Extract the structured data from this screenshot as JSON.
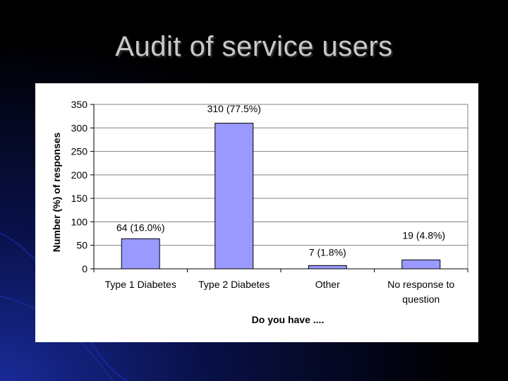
{
  "slide": {
    "title": "Audit of service users"
  },
  "colors": {
    "bar_fill": "#9999FF",
    "bar_stroke": "#000000",
    "plot_bg": "#FFFFFF",
    "gridline": "#808080",
    "title_text": "#C9C9C9"
  },
  "chart_data": {
    "type": "bar",
    "categories": [
      [
        "Type 1 Diabetes"
      ],
      [
        "Type 2 Diabetes"
      ],
      [
        "Other"
      ],
      [
        "No response to",
        "question"
      ]
    ],
    "values": [
      64,
      310,
      7,
      19
    ],
    "data_labels": [
      "64 (16.0%)",
      "310 (77.5%)",
      "7 (1.8%)",
      "19 (4.8%)"
    ],
    "xlabel": "Do you have ....",
    "ylabel": "Number (%) of responses",
    "ylim": [
      0,
      350
    ],
    "yticks": [
      0,
      50,
      100,
      150,
      200,
      250,
      300,
      350
    ],
    "grid": true,
    "legend": "none"
  }
}
